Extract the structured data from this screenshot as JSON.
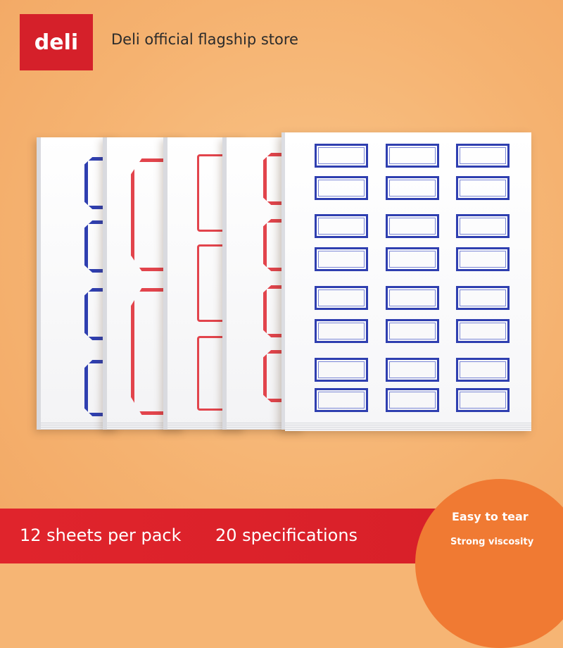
{
  "brand": {
    "logo_text": "deli",
    "store_name": "Deli official flagship store",
    "logo_color": "#d5202a"
  },
  "product": {
    "sheet_colors": [
      "#2f3fb0",
      "#e2444c",
      "#e2444c",
      "#e2444c",
      "#2f3fb0"
    ]
  },
  "banner": {
    "sheets_label": "12 sheets per pack",
    "specs_label": "20 specifications",
    "badge_title": "Easy to tear",
    "badge_subtitle": "Strong viscosity",
    "banner_color": "#d61f28",
    "badge_color": "#f07a33"
  }
}
